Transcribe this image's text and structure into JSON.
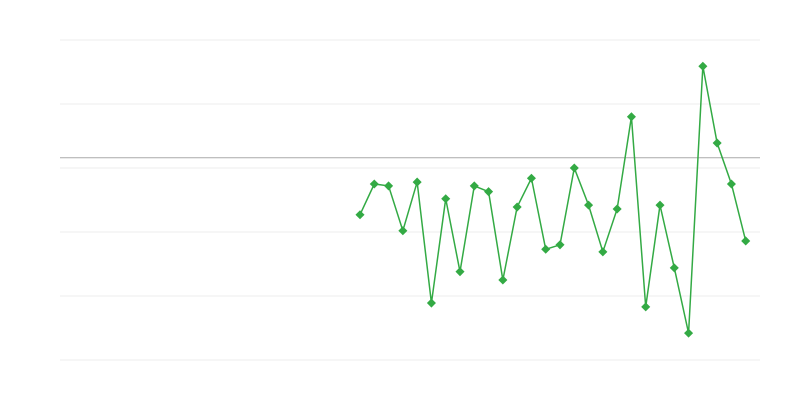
{
  "chart_data": {
    "type": "line",
    "title": "",
    "xlabel": "",
    "ylabel": "",
    "xlim": [
      0,
      49
    ],
    "ylim": [
      0,
      5
    ],
    "grid": true,
    "yticks": [
      0,
      1,
      2,
      3,
      4,
      5
    ],
    "reference_line": 3.16,
    "x": [
      21,
      22,
      23,
      24,
      25,
      26,
      27,
      28,
      29,
      30,
      31,
      32,
      33,
      34,
      35,
      36,
      37,
      38,
      39,
      40,
      41,
      42,
      43,
      44,
      45,
      46,
      47,
      48
    ],
    "series": [
      {
        "color": "#33aa44",
        "values": [
          2.27,
          2.75,
          2.72,
          2.02,
          2.78,
          0.89,
          2.52,
          1.38,
          2.72,
          2.63,
          1.25,
          2.39,
          2.84,
          1.73,
          1.8,
          3.0,
          2.42,
          1.69,
          2.36,
          3.8,
          0.83,
          2.42,
          1.44,
          0.42,
          4.59,
          3.39,
          2.75,
          1.86
        ]
      }
    ],
    "colors": {
      "grid": "#eeeeee",
      "reference": "#aaaaaa",
      "line": "#33aa44"
    }
  }
}
